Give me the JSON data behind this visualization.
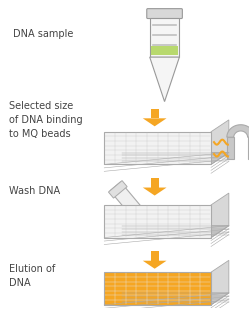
{
  "bg_color": "#ffffff",
  "arrow_color": "#F5A623",
  "text_color": "#444444",
  "steps": [
    {
      "label": "DNA sample"
    },
    {
      "label": "Selected size\nof DNA binding\nto MQ beads"
    },
    {
      "label": "Wash DNA"
    },
    {
      "label": "Elution of\nDNA"
    }
  ],
  "tube_body_color": "#f5f5f5",
  "tube_liquid_color": "#b8d96e",
  "tube_cap_color": "#d8d8d8",
  "tube_line_color": "#c0c0c0",
  "plate_white_top": "#f2f2f2",
  "plate_white_grid": "#cccccc",
  "plate_orange_top": "#F5A623",
  "plate_orange_grid": "#e8e8e8",
  "plate_side_color": "#d8d8d8",
  "plate_bottom_color": "#c8c8c8",
  "magnet_color": "#c8c8c8",
  "magnet_edge": "#aaaaaa",
  "wave_color": "#F5A623",
  "pipette_body_color": "#f0f0f0",
  "pipette_edge_color": "#aaaaaa"
}
